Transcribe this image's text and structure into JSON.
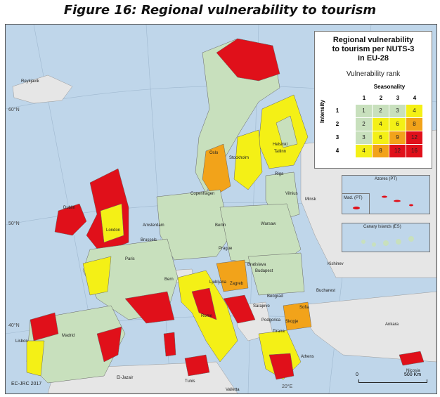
{
  "figure_title": "Figure 16: Regional vulnerability to tourism",
  "legend": {
    "title_lines": [
      "Regional vulnerability",
      "to tourism per NUTS-3",
      "in EU-28"
    ],
    "subtitle": "Vulnerability rank",
    "col_axis_label": "Seasonality",
    "row_axis_label": "Intensity",
    "col_numbers": [
      "1",
      "2",
      "3",
      "4"
    ],
    "row_numbers": [
      "1",
      "2",
      "3",
      "4"
    ],
    "matrix": [
      [
        "1",
        "2",
        "3",
        "4"
      ],
      [
        "2",
        "4",
        "6",
        "8"
      ],
      [
        "3",
        "6",
        "9",
        "12"
      ],
      [
        "4",
        "8",
        "12",
        "16"
      ]
    ],
    "colors": {
      "low": "#c8e0bd",
      "medium": "#f4f016",
      "high": "#f2a31a",
      "very_high": "#e0101a"
    },
    "matrix_color_classes": [
      [
        "low",
        "low",
        "low",
        "medium"
      ],
      [
        "low",
        "medium",
        "medium",
        "high"
      ],
      [
        "low",
        "medium",
        "high",
        "very_high"
      ],
      [
        "medium",
        "high",
        "very_high",
        "very_high"
      ]
    ]
  },
  "insets": {
    "azores": "Azores (PT)",
    "madeira": "Mad. (PT)",
    "canary": "Canary Islands (ES)"
  },
  "places": {
    "reykjavik": "Reykjavik",
    "helsinki": "Helsinki",
    "tallinn": "Tallinn",
    "oslo": "Oslo",
    "stockholm": "Stockholm",
    "riga": "Riga",
    "vilnius": "Vilnius",
    "minsk": "Minsk",
    "dublin": "Dublin",
    "london": "London",
    "amsterdam": "Amsterdam",
    "brussels": "Brussels",
    "berlin": "Berlin",
    "warsaw": "Warsaw",
    "kishinev": "Kishinev",
    "paris": "Paris",
    "prague": "Prague",
    "bratislava": "Bratislava",
    "budapest": "Budapest",
    "bern": "Bern",
    "ljubljana": "Ljubljana",
    "zagreb": "Zagreb",
    "belgrade": "Beograd",
    "bucharest": "Bucharest",
    "sarajevo": "Sarajevo",
    "podgorica": "Podgorica",
    "skopje": "Skopje",
    "sofia": "Sofia",
    "tirana": "Tirana",
    "madrid": "Madrid",
    "lisbon": "Lisbon",
    "rome": "Rome",
    "ankara": "Ankara",
    "athens": "Athens",
    "el_jazair": "El-Jazair",
    "tunis": "Tunis",
    "valletta": "Valletta",
    "nicosia": "Nicosia",
    "copenhagen": "Copenhagen"
  },
  "graticule": {
    "lat_60": "60°N",
    "lat_50": "50°N",
    "lat_40": "40°N",
    "lon_20": "20°E"
  },
  "credit": "EC-JRC 2017",
  "scale": {
    "zero": "0",
    "label": "500 Km"
  }
}
